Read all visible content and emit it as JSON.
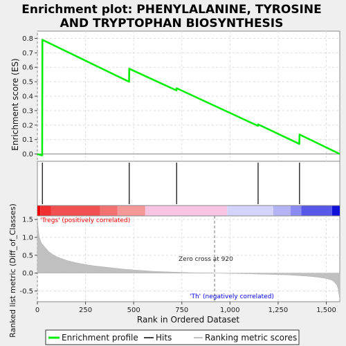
{
  "chart_data": {
    "type": "line",
    "title_lines": [
      "Enrichment plot: PHENYLALANINE, TYROSINE",
      "AND TRYPTOPHAN BIOSYNTHESIS"
    ],
    "xlabel": "Rank in Ordered Dataset",
    "ylabel_top": "Enrichment score (ES)",
    "ylabel_bottom": "Ranked list metric (Diff_of_Classes)",
    "xlim": [
      0,
      1570
    ],
    "x_ticks": [
      0,
      250,
      500,
      750,
      1000,
      1250,
      1500
    ],
    "x_tick_labels": [
      "0",
      "250",
      "500",
      "750",
      "1,000",
      "1,250",
      "1,500"
    ],
    "es_ylim": [
      -0.05,
      0.85
    ],
    "es_ticks": [
      0.0,
      0.1,
      0.2,
      0.3,
      0.4,
      0.5,
      0.6,
      0.7,
      0.8
    ],
    "es_tick_labels": [
      "0.0",
      "0.1",
      "0.2",
      "0.3",
      "0.4",
      "0.5",
      "0.6",
      "0.7",
      "0.8"
    ],
    "metric_ylim": [
      -0.8,
      1.6
    ],
    "metric_ticks": [
      -0.5,
      0.0,
      0.5,
      1.0,
      1.5
    ],
    "metric_tick_labels": [
      "-0.5",
      "0.0",
      "0.5",
      "1.0",
      "1.5"
    ],
    "grid": true,
    "enrichment_profile": {
      "name": "Enrichment profile",
      "color": "#00ee00",
      "x": [
        0,
        25,
        26,
        476,
        477,
        722,
        723,
        1145,
        1146,
        1360,
        1361,
        1570
      ],
      "y": [
        0.0,
        -0.01,
        0.79,
        0.5,
        0.59,
        0.44,
        0.455,
        0.195,
        0.205,
        0.07,
        0.135,
        0.0
      ]
    },
    "hits": {
      "name": "Hits",
      "x": [
        26,
        477,
        723,
        1146,
        1361
      ]
    },
    "ranked_metric": {
      "name": "Ranking metric scores",
      "color": "#c0c0c0",
      "x": [
        0,
        5,
        10,
        20,
        40,
        60,
        80,
        100,
        150,
        200,
        250,
        300,
        350,
        400,
        450,
        500,
        550,
        600,
        700,
        800,
        900,
        920,
        1000,
        1100,
        1200,
        1300,
        1400,
        1450,
        1500,
        1530,
        1545,
        1555,
        1562,
        1566,
        1570
      ],
      "y": [
        1.55,
        1.2,
        1.0,
        0.85,
        0.72,
        0.6,
        0.52,
        0.46,
        0.36,
        0.29,
        0.24,
        0.2,
        0.17,
        0.14,
        0.11,
        0.09,
        0.07,
        0.05,
        0.03,
        0.01,
        0.005,
        0.0,
        -0.01,
        -0.02,
        -0.035,
        -0.05,
        -0.085,
        -0.11,
        -0.15,
        -0.2,
        -0.27,
        -0.34,
        -0.45,
        -0.6,
        -0.75
      ]
    },
    "heat_bar_segments": [
      {
        "start": 0,
        "end": 15,
        "color": "#ee0000"
      },
      {
        "start": 15,
        "end": 70,
        "color": "#f03030"
      },
      {
        "start": 70,
        "end": 325,
        "color": "#f05050"
      },
      {
        "start": 325,
        "end": 415,
        "color": "#f27272"
      },
      {
        "start": 415,
        "end": 560,
        "color": "#f49898"
      },
      {
        "start": 560,
        "end": 985,
        "color": "#f8c4e4"
      },
      {
        "start": 985,
        "end": 1225,
        "color": "#d4d4fa"
      },
      {
        "start": 1225,
        "end": 1315,
        "color": "#b4b4f4"
      },
      {
        "start": 1315,
        "end": 1370,
        "color": "#8a8af0"
      },
      {
        "start": 1370,
        "end": 1530,
        "color": "#5858e8"
      },
      {
        "start": 1530,
        "end": 1570,
        "color": "#1010d8"
      }
    ],
    "zero_cross": 920,
    "annotations": {
      "positive": "'Tregs' (positively correlated)",
      "negative": "'Th' (negatively correlated)",
      "zero_cross": "Zero cross at 920"
    },
    "legend": {
      "placement": "bottom",
      "items": [
        "Enrichment profile",
        "Hits",
        "Ranking metric scores"
      ]
    }
  }
}
